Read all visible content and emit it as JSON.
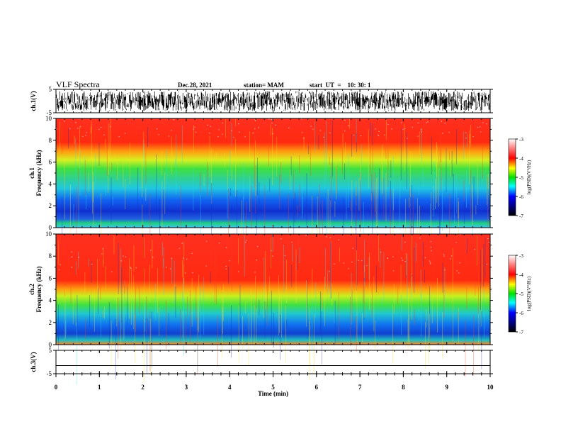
{
  "header": {
    "title": "VLF Spectra",
    "date": "Dec.28, 2021",
    "station": "station= MAM",
    "start": "start  UT  =    10: 30: 1"
  },
  "chart_data": [
    {
      "type": "line",
      "panel": "ch1-waveform",
      "ylabel": "ch.1(V)",
      "yticks": [
        5,
        -5
      ],
      "ylim": [
        -5,
        5
      ],
      "xlim": [
        0,
        10
      ],
      "description_values": "dense broadband noise, amplitude roughly -4 to 4 V"
    },
    {
      "type": "heatmap",
      "panel": "ch1-spectrogram",
      "ylabel_line1": "ch.1",
      "ylabel_line2": "Frequency (kHz)",
      "yticks": [
        0,
        2,
        4,
        6,
        8,
        10
      ],
      "ylim": [
        0,
        10
      ],
      "xlim": [
        0,
        10
      ],
      "colorbar": {
        "label": "log(PSD)(V²/Hz)",
        "ticks": [
          -3,
          -4,
          -5,
          -6,
          -7
        ],
        "range": [
          -7,
          -3
        ]
      }
    },
    {
      "type": "heatmap",
      "panel": "ch2-spectrogram",
      "ylabel_line1": "ch.2",
      "ylabel_line2": "Frequency (kHz)",
      "yticks": [
        0,
        2,
        4,
        6,
        8,
        10
      ],
      "ylim": [
        0,
        10
      ],
      "xlim": [
        0,
        10
      ],
      "colorbar": {
        "label": "log(PSD)(V²/Hz)",
        "ticks": [
          -3,
          -4,
          -5,
          -6,
          -7
        ],
        "range": [
          -7,
          -3
        ]
      }
    },
    {
      "type": "line",
      "panel": "ch3-waveform",
      "ylabel": "ch.3(V)",
      "yticks": [
        5,
        -5
      ],
      "ylim": [
        -5,
        5
      ],
      "xlim": [
        0,
        10
      ],
      "constant_value": -1.5
    }
  ],
  "xaxis": {
    "label": "Time  (min)",
    "ticks": [
      0,
      1,
      2,
      3,
      4,
      5,
      6,
      7,
      8,
      9,
      10
    ]
  },
  "colors": {
    "axis": "#000000"
  }
}
